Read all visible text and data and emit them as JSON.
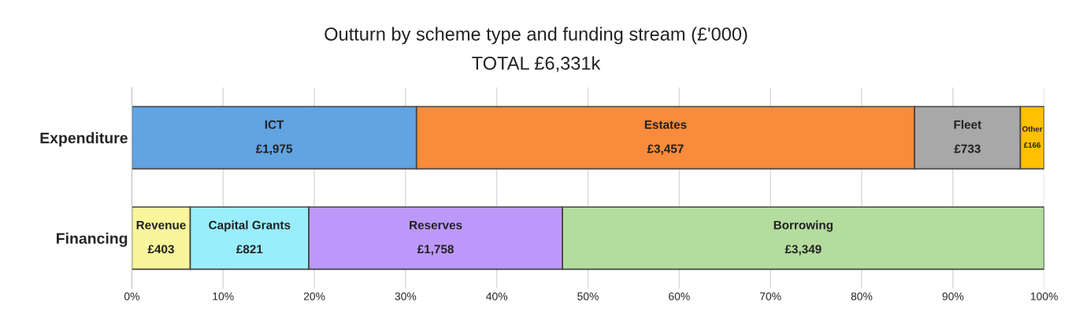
{
  "chart_data": {
    "type": "bar",
    "orientation": "horizontal",
    "stacked": true,
    "title": "Outturn by scheme type and funding stream (£'000)",
    "subtitle": "TOTAL £6,331k",
    "categories": [
      "Expenditure",
      "Financing"
    ],
    "series": [
      {
        "name": "ICT",
        "color": "#62a3e2",
        "values": [
          31.2,
          null
        ]
      },
      {
        "name": "Estates",
        "color": "#f98b3b",
        "values": [
          54.6,
          null
        ]
      },
      {
        "name": "Fleet",
        "color": "#a8a8a8",
        "values": [
          11.6,
          null
        ]
      },
      {
        "name": "Other",
        "color": "#ffc000",
        "values": [
          2.6,
          null
        ]
      },
      {
        "name": "Revenue",
        "color": "#f8f59a",
        "values": [
          null,
          6.4
        ]
      },
      {
        "name": "Capital Grants",
        "color": "#9aeefc",
        "values": [
          null,
          13.0
        ]
      },
      {
        "name": "Reserves",
        "color": "#bd98fb",
        "values": [
          null,
          27.8
        ]
      },
      {
        "name": "Borrowing",
        "color": "#b4dc9f",
        "values": [
          null,
          52.8
        ]
      }
    ],
    "annotations": [
      "£1,975",
      "£3,457",
      "£733",
      "£166",
      "£403",
      "£821",
      "£1,758",
      "£3,349"
    ],
    "xlim": [
      0,
      100
    ],
    "xticks": [
      {
        "value": 0,
        "label": "0%"
      },
      {
        "value": 10,
        "label": "10%"
      },
      {
        "value": 20,
        "label": "20%"
      },
      {
        "value": 30,
        "label": "30%"
      },
      {
        "value": 40,
        "label": "40%"
      },
      {
        "value": 50,
        "label": "50%"
      },
      {
        "value": 60,
        "label": "60%"
      },
      {
        "value": 70,
        "label": "70%"
      },
      {
        "value": 80,
        "label": "80%"
      },
      {
        "value": 90,
        "label": "90%"
      },
      {
        "value": 100,
        "label": "100%"
      }
    ],
    "grid": "x",
    "legend": false
  }
}
